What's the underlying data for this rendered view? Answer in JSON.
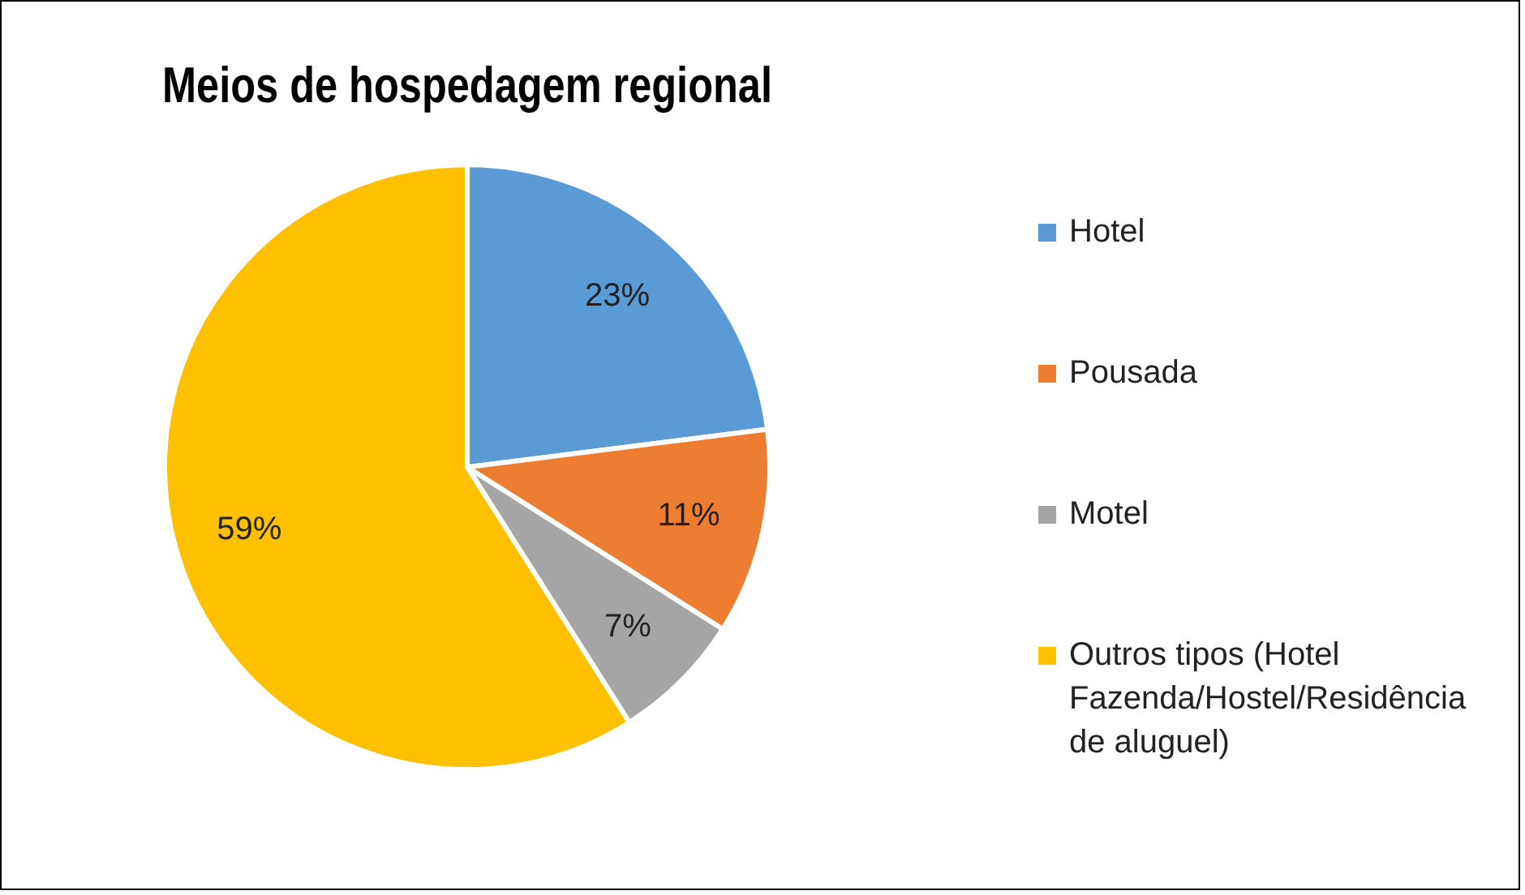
{
  "chart_data": {
    "type": "pie",
    "title": "Meios de hospedagem regional",
    "categories": [
      "Hotel",
      "Pousada",
      "Motel",
      "Outros tipos (Hotel Fazenda/Hostel/Residência de aluguel)"
    ],
    "values": [
      23,
      11,
      7,
      59
    ],
    "colors": [
      "#5b9bd5",
      "#ed7d31",
      "#a5a5a5",
      "#ffc000"
    ],
    "value_labels": [
      "23%",
      "11%",
      "7%",
      "59%"
    ],
    "legend": "right"
  }
}
